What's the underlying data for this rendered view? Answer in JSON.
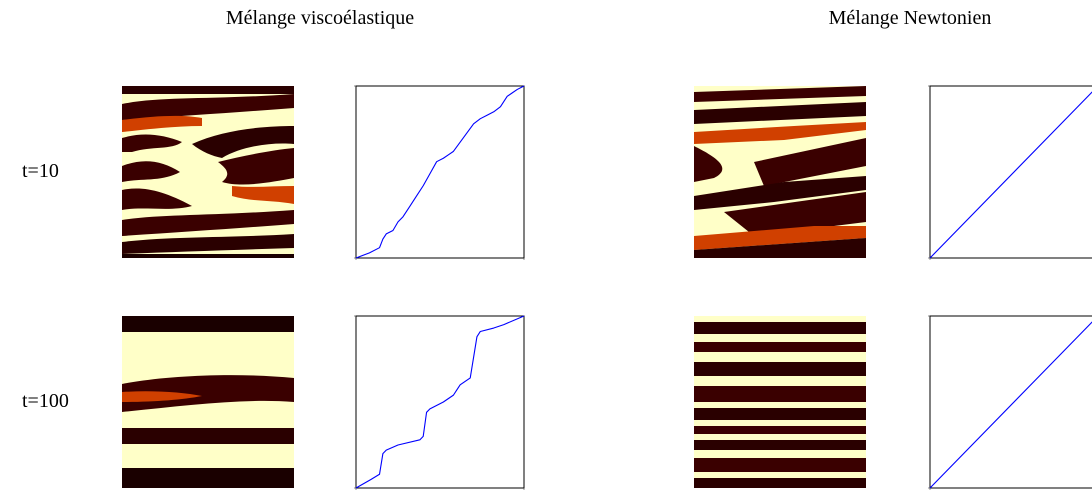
{
  "columns": [
    {
      "title": "Mélange viscoélastique"
    },
    {
      "title": "Mélange Newtonien"
    }
  ],
  "rows": [
    {
      "label": "t=10"
    },
    {
      "label": "t=100"
    }
  ],
  "colors": {
    "dark": "#3a0000",
    "hot": "#d03a00",
    "bright": "#ffffc8",
    "curve": "#0000ff"
  },
  "chart_data": [
    {
      "type": "line",
      "column": "Mélange viscoélastique",
      "row": "t=10",
      "xlim": [
        0,
        1
      ],
      "ylim": [
        0,
        1
      ],
      "x": [
        0,
        0.08,
        0.14,
        0.16,
        0.18,
        0.22,
        0.25,
        0.28,
        0.32,
        0.36,
        0.4,
        0.44,
        0.48,
        0.52,
        0.55,
        0.58,
        0.61,
        0.64,
        0.67,
        0.7,
        0.74,
        0.78,
        0.82,
        0.86,
        0.9,
        0.93,
        0.96,
        1.0
      ],
      "y": [
        0,
        0.03,
        0.06,
        0.11,
        0.14,
        0.16,
        0.21,
        0.24,
        0.3,
        0.36,
        0.42,
        0.49,
        0.56,
        0.58,
        0.6,
        0.62,
        0.66,
        0.7,
        0.74,
        0.78,
        0.81,
        0.83,
        0.85,
        0.88,
        0.94,
        0.96,
        0.98,
        1.0
      ]
    },
    {
      "type": "line",
      "column": "Mélange Newtonien",
      "row": "t=10",
      "xlim": [
        0,
        1
      ],
      "ylim": [
        0,
        1
      ],
      "x": [
        0,
        1
      ],
      "y": [
        0,
        1
      ]
    },
    {
      "type": "line",
      "column": "Mélange viscoélastique",
      "row": "t=100",
      "xlim": [
        0,
        1
      ],
      "ylim": [
        0,
        1
      ],
      "x": [
        0,
        0.09,
        0.14,
        0.16,
        0.18,
        0.25,
        0.38,
        0.4,
        0.42,
        0.44,
        0.52,
        0.58,
        0.6,
        0.62,
        0.68,
        0.72,
        0.74,
        0.82,
        0.88,
        1.0
      ],
      "y": [
        0,
        0.05,
        0.08,
        0.2,
        0.22,
        0.25,
        0.28,
        0.3,
        0.44,
        0.46,
        0.5,
        0.54,
        0.57,
        0.6,
        0.64,
        0.88,
        0.91,
        0.93,
        0.95,
        1.0
      ]
    },
    {
      "type": "line",
      "column": "Mélange Newtonien",
      "row": "t=100",
      "xlim": [
        0,
        1
      ],
      "ylim": [
        0,
        1
      ],
      "x": [
        0,
        1
      ],
      "y": [
        0,
        1
      ]
    }
  ]
}
